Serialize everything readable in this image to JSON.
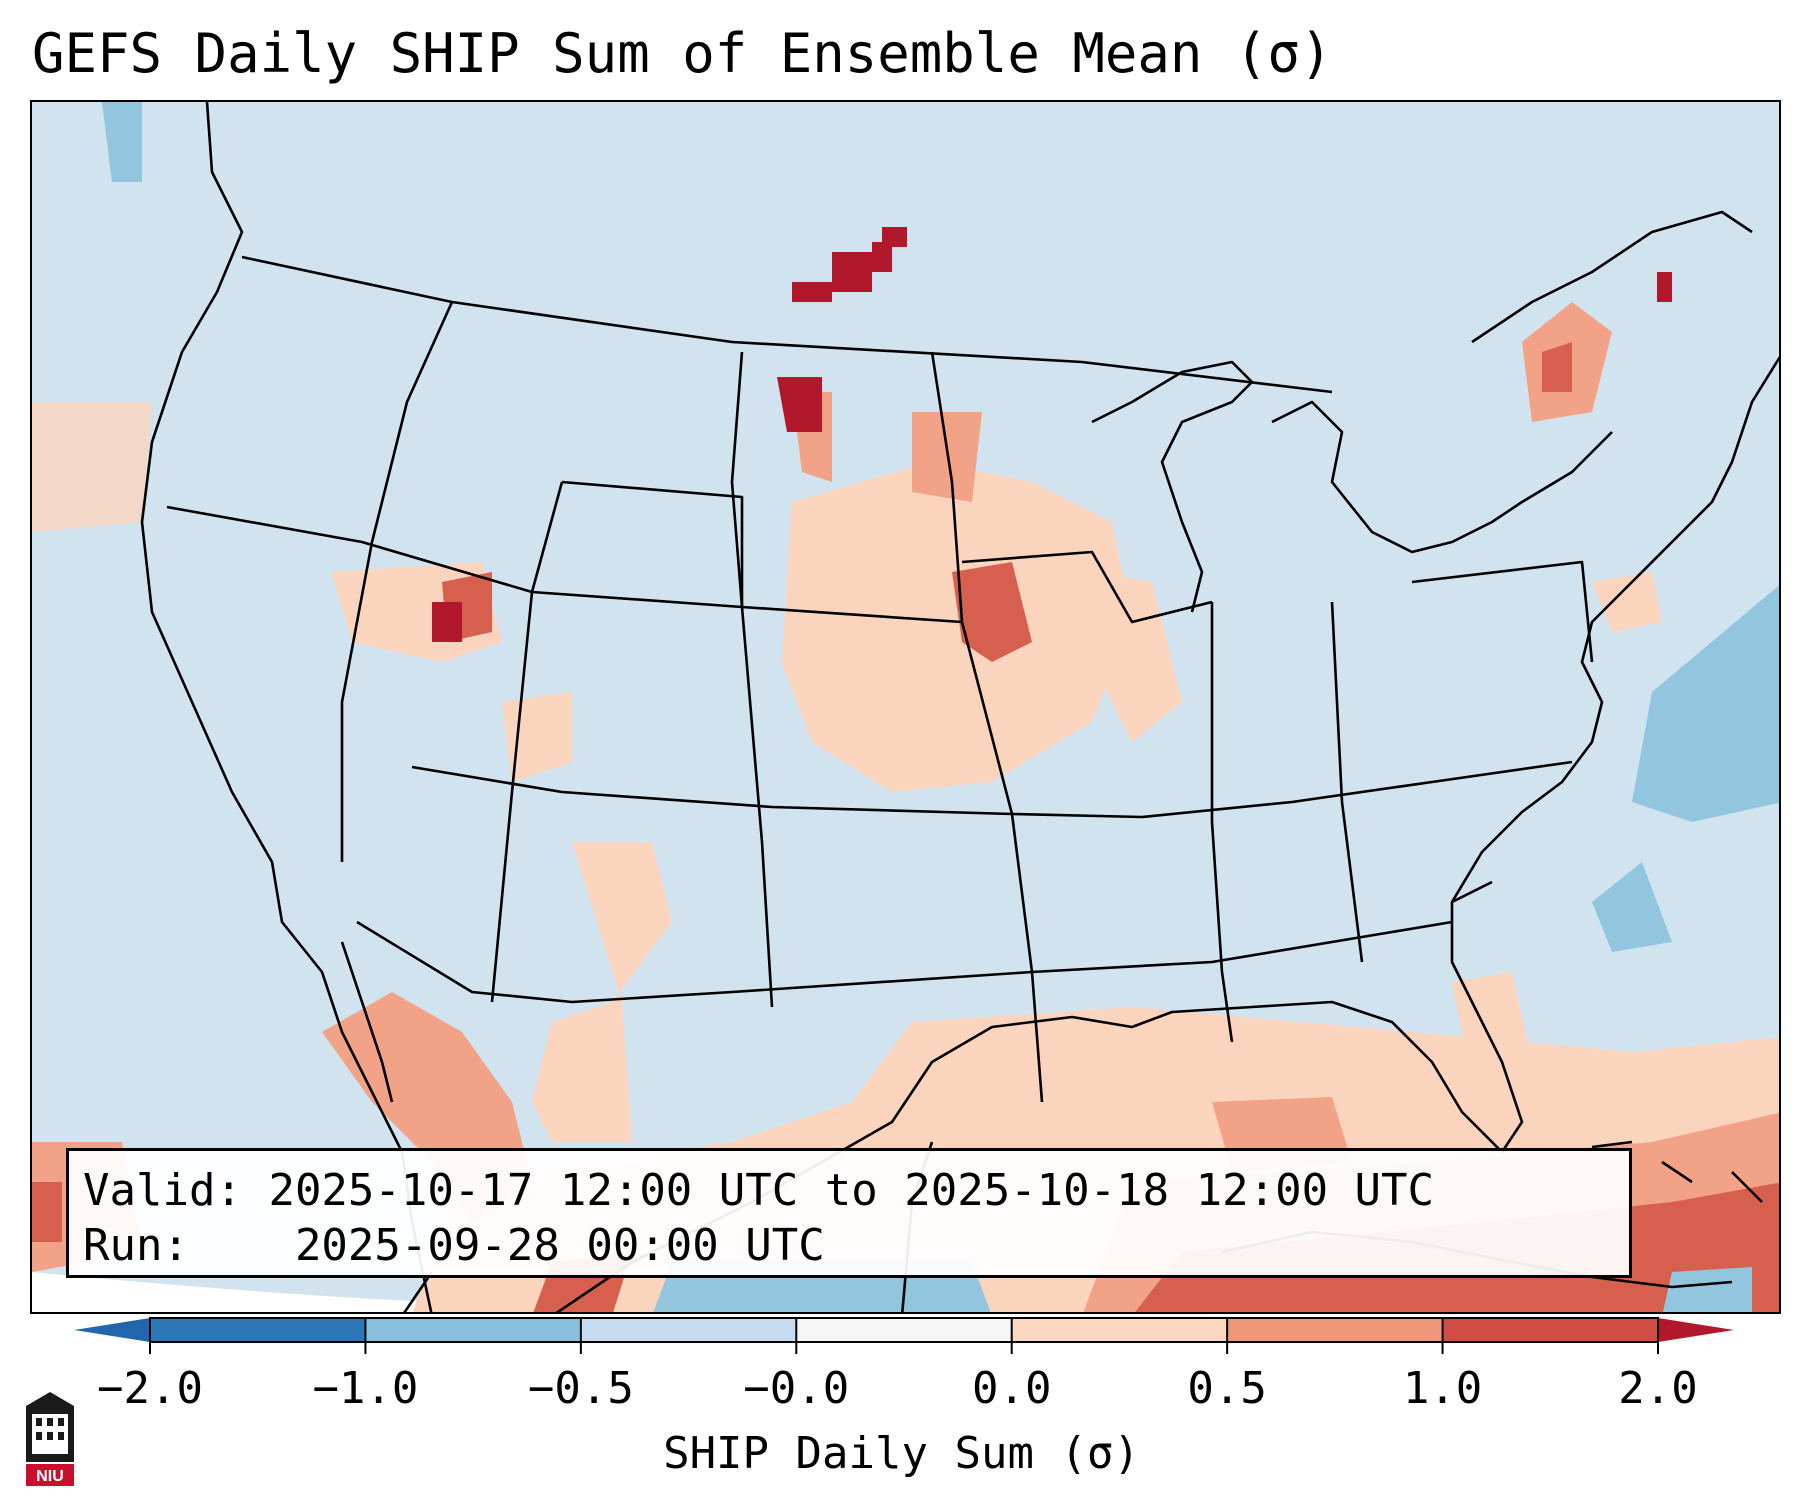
{
  "title": "GEFS Daily SHIP Sum of Ensemble Mean (σ)",
  "valid_label": "Valid:",
  "valid_value": "2025-10-17 12:00 UTC to 2025-10-18 12:00 UTC",
  "run_label": "Run:",
  "run_value": "2025-09-28 00:00 UTC",
  "colorbar": {
    "label": "SHIP Daily Sum (σ)",
    "ticks": [
      "−2.0",
      "−1.0",
      "−0.5",
      "−0.0",
      "0.0",
      "0.5",
      "1.0",
      "2.0"
    ],
    "colors": [
      "#2e77b7",
      "#89bedc",
      "#c6dbef",
      "#f6f6f6",
      "#fcd8c3",
      "#f0977a",
      "#d04d43"
    ],
    "extend_low_color": "#2166ac",
    "extend_high_color": "#b2182b"
  },
  "map": {
    "background_color": "#d2e3f0",
    "line_color": "#000000",
    "palette": {
      "light_red": "#fbd4bd",
      "mid_red": "#f2a387",
      "red": "#d6604d",
      "dark_red": "#b2182b",
      "light_blue": "#92c5de",
      "blue": "#4393c3"
    }
  },
  "logo_text": "NIU"
}
